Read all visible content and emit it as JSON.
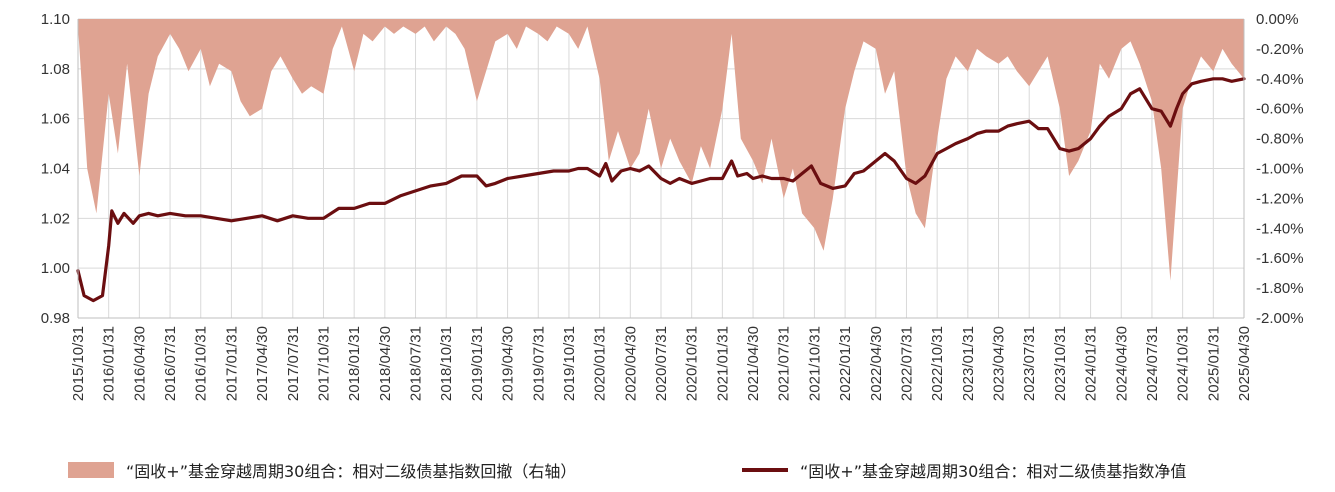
{
  "colors": {
    "area": "#DFA392",
    "line": "#6B0E10",
    "grid": "#D9D9D9",
    "axis": "#BFBFBF",
    "text": "#333333"
  },
  "chart_data": {
    "type": "line",
    "title": "",
    "x_tick_labels": [
      "2015/10/31",
      "2016/01/31",
      "2016/04/30",
      "2016/07/31",
      "2016/10/31",
      "2017/01/31",
      "2017/04/30",
      "2017/07/31",
      "2017/10/31",
      "2018/01/31",
      "2018/04/30",
      "2018/07/31",
      "2018/10/31",
      "2019/01/31",
      "2019/04/30",
      "2019/07/31",
      "2019/10/31",
      "2020/01/31",
      "2020/04/30",
      "2020/07/31",
      "2020/10/31",
      "2021/01/31",
      "2021/04/30",
      "2021/07/31",
      "2021/10/31",
      "2022/01/31",
      "2022/04/30",
      "2022/07/31",
      "2022/10/31",
      "2023/01/31",
      "2023/04/30",
      "2023/07/31",
      "2023/10/31",
      "2024/01/31",
      "2024/04/30",
      "2024/07/31",
      "2024/10/31",
      "2025/01/31",
      "2025/04/30"
    ],
    "y_left": {
      "ticks": [
        "1.10",
        "1.08",
        "1.06",
        "1.04",
        "1.02",
        "1.00",
        "0.98"
      ],
      "ylim": [
        0.98,
        1.1
      ]
    },
    "y_right": {
      "ticks": [
        "0.00%",
        "-0.20%",
        "-0.40%",
        "-0.60%",
        "-0.80%",
        "-1.00%",
        "-1.20%",
        "-1.40%",
        "-1.60%",
        "-1.80%",
        "-2.00%"
      ],
      "ylim": [
        -2.0,
        0.0
      ]
    },
    "grid": true,
    "legend_position": "bottom",
    "series": [
      {
        "name": "“固收+”基金穿越周期30组合：相对二级债基指数回撤（右轴）",
        "type": "area",
        "axis": "right",
        "unit": "%",
        "points": [
          [
            0,
            -0.05
          ],
          [
            0.3,
            -1.0
          ],
          [
            0.6,
            -1.3
          ],
          [
            1.0,
            -0.5
          ],
          [
            1.3,
            -0.9
          ],
          [
            1.6,
            -0.3
          ],
          [
            2.0,
            -1.05
          ],
          [
            2.3,
            -0.5
          ],
          [
            2.6,
            -0.25
          ],
          [
            3.0,
            -0.1
          ],
          [
            3.3,
            -0.2
          ],
          [
            3.6,
            -0.35
          ],
          [
            4.0,
            -0.2
          ],
          [
            4.3,
            -0.45
          ],
          [
            4.6,
            -0.3
          ],
          [
            5.0,
            -0.35
          ],
          [
            5.3,
            -0.55
          ],
          [
            5.6,
            -0.65
          ],
          [
            6.0,
            -0.6
          ],
          [
            6.3,
            -0.35
          ],
          [
            6.6,
            -0.25
          ],
          [
            7.0,
            -0.4
          ],
          [
            7.3,
            -0.5
          ],
          [
            7.6,
            -0.45
          ],
          [
            8.0,
            -0.5
          ],
          [
            8.3,
            -0.2
          ],
          [
            8.6,
            -0.05
          ],
          [
            9.0,
            -0.35
          ],
          [
            9.3,
            -0.1
          ],
          [
            9.6,
            -0.15
          ],
          [
            10.0,
            -0.05
          ],
          [
            10.3,
            -0.1
          ],
          [
            10.6,
            -0.05
          ],
          [
            11.0,
            -0.1
          ],
          [
            11.3,
            -0.05
          ],
          [
            11.6,
            -0.15
          ],
          [
            12.0,
            -0.05
          ],
          [
            12.3,
            -0.1
          ],
          [
            12.6,
            -0.2
          ],
          [
            13.0,
            -0.55
          ],
          [
            13.3,
            -0.35
          ],
          [
            13.6,
            -0.15
          ],
          [
            14.0,
            -0.1
          ],
          [
            14.3,
            -0.2
          ],
          [
            14.6,
            -0.05
          ],
          [
            15.0,
            -0.1
          ],
          [
            15.3,
            -0.15
          ],
          [
            15.6,
            -0.05
          ],
          [
            16.0,
            -0.1
          ],
          [
            16.3,
            -0.2
          ],
          [
            16.6,
            -0.05
          ],
          [
            17.0,
            -0.4
          ],
          [
            17.3,
            -0.95
          ],
          [
            17.6,
            -0.75
          ],
          [
            18.0,
            -1.0
          ],
          [
            18.3,
            -0.9
          ],
          [
            18.6,
            -0.6
          ],
          [
            19.0,
            -1.0
          ],
          [
            19.3,
            -0.8
          ],
          [
            19.6,
            -0.95
          ],
          [
            20.0,
            -1.1
          ],
          [
            20.3,
            -0.85
          ],
          [
            20.6,
            -1.0
          ],
          [
            21.0,
            -0.6
          ],
          [
            21.3,
            -0.1
          ],
          [
            21.6,
            -0.8
          ],
          [
            22.0,
            -0.95
          ],
          [
            22.3,
            -1.1
          ],
          [
            22.6,
            -0.8
          ],
          [
            23.0,
            -1.2
          ],
          [
            23.3,
            -1.0
          ],
          [
            23.6,
            -1.3
          ],
          [
            24.0,
            -1.4
          ],
          [
            24.3,
            -1.55
          ],
          [
            24.6,
            -1.2
          ],
          [
            25.0,
            -0.6
          ],
          [
            25.3,
            -0.35
          ],
          [
            25.6,
            -0.15
          ],
          [
            26.0,
            -0.2
          ],
          [
            26.3,
            -0.5
          ],
          [
            26.6,
            -0.35
          ],
          [
            27.0,
            -1.05
          ],
          [
            27.3,
            -1.3
          ],
          [
            27.6,
            -1.4
          ],
          [
            28.0,
            -0.8
          ],
          [
            28.3,
            -0.4
          ],
          [
            28.6,
            -0.25
          ],
          [
            29.0,
            -0.35
          ],
          [
            29.3,
            -0.2
          ],
          [
            29.6,
            -0.25
          ],
          [
            30.0,
            -0.3
          ],
          [
            30.3,
            -0.25
          ],
          [
            30.6,
            -0.35
          ],
          [
            31.0,
            -0.45
          ],
          [
            31.3,
            -0.35
          ],
          [
            31.6,
            -0.25
          ],
          [
            32.0,
            -0.6
          ],
          [
            32.3,
            -1.05
          ],
          [
            32.6,
            -0.95
          ],
          [
            33.0,
            -0.75
          ],
          [
            33.3,
            -0.3
          ],
          [
            33.6,
            -0.4
          ],
          [
            34.0,
            -0.2
          ],
          [
            34.3,
            -0.15
          ],
          [
            34.6,
            -0.3
          ],
          [
            35.0,
            -0.55
          ],
          [
            35.3,
            -1.0
          ],
          [
            35.6,
            -1.75
          ],
          [
            36.0,
            -0.6
          ],
          [
            36.3,
            -0.4
          ],
          [
            36.6,
            -0.25
          ],
          [
            37.0,
            -0.35
          ],
          [
            37.3,
            -0.2
          ],
          [
            37.6,
            -0.3
          ],
          [
            38.0,
            -0.4
          ]
        ]
      },
      {
        "name": "“固收+”基金穿越周期30组合：相对二级债基指数净值",
        "type": "line",
        "axis": "left",
        "points": [
          [
            0,
            0.999
          ],
          [
            0.2,
            0.989
          ],
          [
            0.5,
            0.987
          ],
          [
            0.8,
            0.989
          ],
          [
            1.0,
            1.009
          ],
          [
            1.1,
            1.023
          ],
          [
            1.3,
            1.018
          ],
          [
            1.5,
            1.022
          ],
          [
            1.8,
            1.018
          ],
          [
            2.0,
            1.021
          ],
          [
            2.3,
            1.022
          ],
          [
            2.6,
            1.021
          ],
          [
            3.0,
            1.022
          ],
          [
            3.5,
            1.021
          ],
          [
            4.0,
            1.021
          ],
          [
            4.5,
            1.02
          ],
          [
            5.0,
            1.019
          ],
          [
            5.5,
            1.02
          ],
          [
            6.0,
            1.021
          ],
          [
            6.5,
            1.019
          ],
          [
            7.0,
            1.021
          ],
          [
            7.5,
            1.02
          ],
          [
            8.0,
            1.02
          ],
          [
            8.5,
            1.024
          ],
          [
            9.0,
            1.024
          ],
          [
            9.5,
            1.026
          ],
          [
            10.0,
            1.026
          ],
          [
            10.5,
            1.029
          ],
          [
            11.0,
            1.031
          ],
          [
            11.5,
            1.033
          ],
          [
            12.0,
            1.034
          ],
          [
            12.5,
            1.037
          ],
          [
            13.0,
            1.037
          ],
          [
            13.3,
            1.033
          ],
          [
            13.6,
            1.034
          ],
          [
            14.0,
            1.036
          ],
          [
            14.5,
            1.037
          ],
          [
            15.0,
            1.038
          ],
          [
            15.5,
            1.039
          ],
          [
            16.0,
            1.039
          ],
          [
            16.3,
            1.04
          ],
          [
            16.6,
            1.04
          ],
          [
            17.0,
            1.037
          ],
          [
            17.2,
            1.042
          ],
          [
            17.4,
            1.035
          ],
          [
            17.7,
            1.039
          ],
          [
            18.0,
            1.04
          ],
          [
            18.3,
            1.039
          ],
          [
            18.6,
            1.041
          ],
          [
            19.0,
            1.036
          ],
          [
            19.3,
            1.034
          ],
          [
            19.6,
            1.036
          ],
          [
            20.0,
            1.034
          ],
          [
            20.3,
            1.035
          ],
          [
            20.6,
            1.036
          ],
          [
            21.0,
            1.036
          ],
          [
            21.3,
            1.043
          ],
          [
            21.5,
            1.037
          ],
          [
            21.8,
            1.038
          ],
          [
            22.0,
            1.036
          ],
          [
            22.3,
            1.037
          ],
          [
            22.6,
            1.036
          ],
          [
            23.0,
            1.036
          ],
          [
            23.3,
            1.035
          ],
          [
            23.6,
            1.038
          ],
          [
            23.9,
            1.041
          ],
          [
            24.2,
            1.034
          ],
          [
            24.6,
            1.032
          ],
          [
            25.0,
            1.033
          ],
          [
            25.3,
            1.038
          ],
          [
            25.6,
            1.039
          ],
          [
            26.0,
            1.043
          ],
          [
            26.3,
            1.046
          ],
          [
            26.6,
            1.043
          ],
          [
            27.0,
            1.036
          ],
          [
            27.3,
            1.034
          ],
          [
            27.6,
            1.037
          ],
          [
            28.0,
            1.046
          ],
          [
            28.3,
            1.048
          ],
          [
            28.6,
            1.05
          ],
          [
            29.0,
            1.052
          ],
          [
            29.3,
            1.054
          ],
          [
            29.6,
            1.055
          ],
          [
            30.0,
            1.055
          ],
          [
            30.3,
            1.057
          ],
          [
            30.6,
            1.058
          ],
          [
            31.0,
            1.059
          ],
          [
            31.3,
            1.056
          ],
          [
            31.6,
            1.056
          ],
          [
            32.0,
            1.048
          ],
          [
            32.3,
            1.047
          ],
          [
            32.6,
            1.048
          ],
          [
            33.0,
            1.052
          ],
          [
            33.3,
            1.057
          ],
          [
            33.6,
            1.061
          ],
          [
            34.0,
            1.064
          ],
          [
            34.3,
            1.07
          ],
          [
            34.6,
            1.072
          ],
          [
            35.0,
            1.064
          ],
          [
            35.3,
            1.063
          ],
          [
            35.6,
            1.057
          ],
          [
            35.8,
            1.064
          ],
          [
            36.0,
            1.07
          ],
          [
            36.3,
            1.074
          ],
          [
            36.6,
            1.075
          ],
          [
            37.0,
            1.076
          ],
          [
            37.3,
            1.076
          ],
          [
            37.6,
            1.075
          ],
          [
            38.0,
            1.076
          ]
        ]
      }
    ]
  }
}
